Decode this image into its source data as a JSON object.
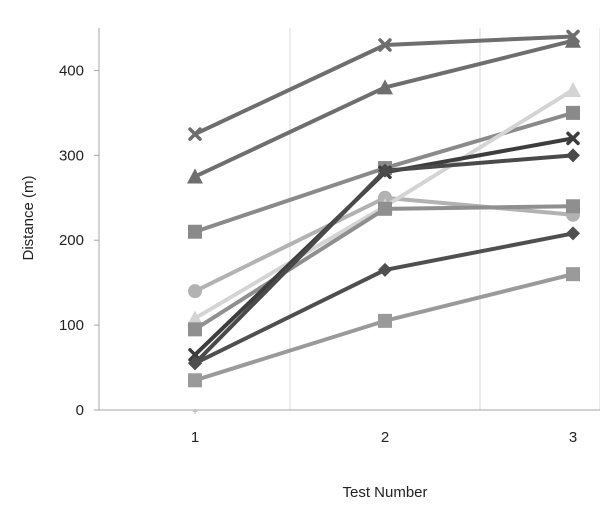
{
  "chart_data": {
    "type": "line",
    "title": "",
    "xlabel": "Test Number",
    "ylabel": "Distance (m)",
    "categories": [
      "1",
      "2",
      "3"
    ],
    "ylim": [
      0,
      450
    ],
    "yticks": [
      "0",
      "100",
      "200",
      "300",
      "400"
    ],
    "grid": "vertical lines between categories",
    "legend": "none",
    "series": [
      {
        "values": [
          325,
          430,
          440
        ],
        "color": "#6e6e6e",
        "marker": "x"
      },
      {
        "values": [
          275,
          380,
          435
        ],
        "color": "#6e6e6e",
        "marker": "triangle"
      },
      {
        "values": [
          210,
          285,
          350
        ],
        "color": "#8a8a8a",
        "marker": "square"
      },
      {
        "values": [
          140,
          250,
          230
        ],
        "color": "#b2b2b2",
        "marker": "circle"
      },
      {
        "values": [
          108,
          240,
          377
        ],
        "color": "#d4d4d4",
        "marker": "triangle"
      },
      {
        "values": [
          95,
          237,
          240
        ],
        "color": "#8f8f8f",
        "marker": "square"
      },
      {
        "values": [
          65,
          280,
          320
        ],
        "color": "#3d3d3d",
        "marker": "x"
      },
      {
        "values": [
          55,
          282,
          300
        ],
        "color": "#4a4a4a",
        "marker": "diamond"
      },
      {
        "values": [
          55,
          165,
          208
        ],
        "color": "#4f4f4f",
        "marker": "diamond"
      },
      {
        "values": [
          35,
          105,
          160
        ],
        "color": "#9a9a9a",
        "marker": "square"
      }
    ]
  }
}
